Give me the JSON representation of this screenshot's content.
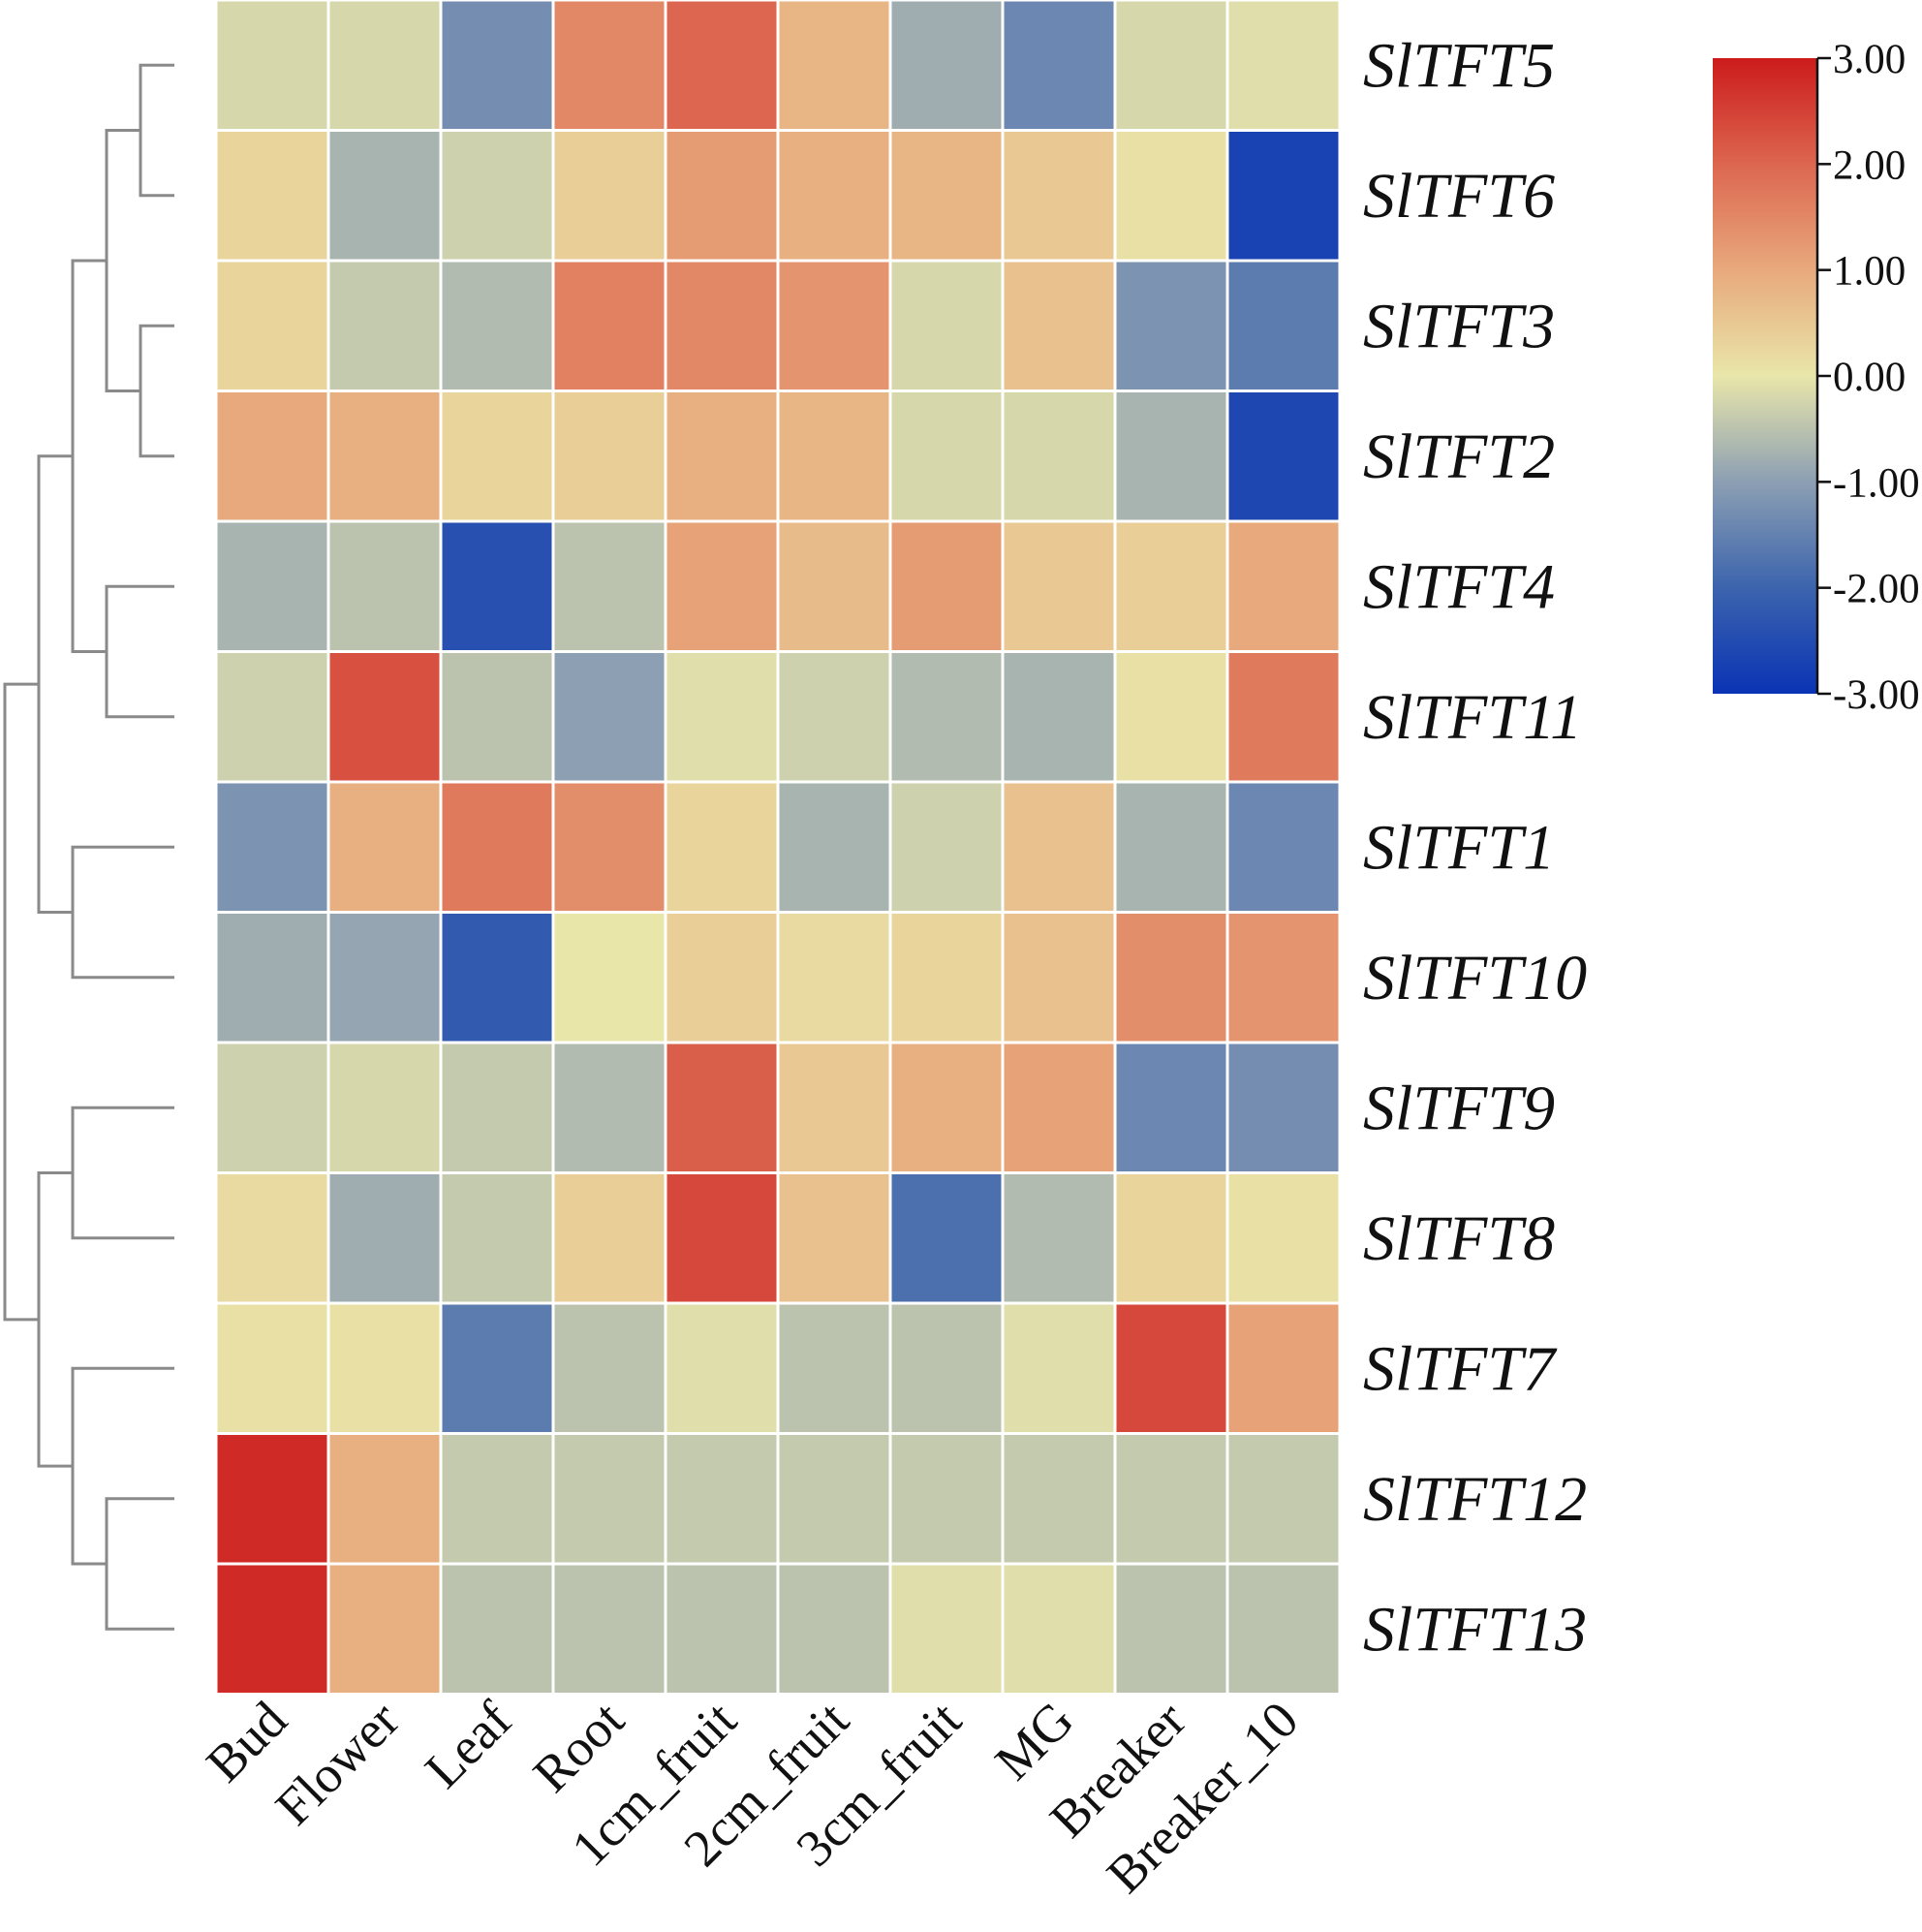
{
  "chart_data": {
    "type": "heatmap",
    "title": "",
    "xlabel": "",
    "ylabel": "",
    "columns": [
      "Bud",
      "Flower",
      "Leaf",
      "Root",
      "1cm_fruit",
      "2cm_fruit",
      "3cm_fruit",
      "MG",
      "Breaker",
      "Breaker_10"
    ],
    "rows": [
      "SlTFT5",
      "SlTFT6",
      "SlTFT3",
      "SlTFT2",
      "SlTFT4",
      "SlTFT11",
      "SlTFT1",
      "SlTFT10",
      "SlTFT9",
      "SlTFT8",
      "SlTFT7",
      "SlTFT12",
      "SlTFT13"
    ],
    "values": [
      [
        -0.2,
        -0.2,
        -1.3,
        1.5,
        2.0,
        0.8,
        -0.8,
        -1.4,
        -0.2,
        -0.1
      ],
      [
        0.3,
        -0.7,
        -0.3,
        0.4,
        1.2,
        0.9,
        0.8,
        0.5,
        0.1,
        -2.7
      ],
      [
        0.3,
        -0.4,
        -0.6,
        1.6,
        1.5,
        1.3,
        -0.2,
        0.6,
        -1.2,
        -1.6
      ],
      [
        1.0,
        0.9,
        0.3,
        0.4,
        0.9,
        0.8,
        -0.2,
        -0.2,
        -0.7,
        -2.6
      ],
      [
        -0.7,
        -0.5,
        -2.4,
        -0.5,
        1.1,
        0.7,
        1.2,
        0.5,
        0.4,
        1.0
      ],
      [
        -0.3,
        2.3,
        -0.5,
        -1.0,
        -0.1,
        -0.3,
        -0.6,
        -0.7,
        0.1,
        1.7
      ],
      [
        -1.2,
        0.9,
        1.7,
        1.4,
        0.3,
        -0.7,
        -0.3,
        0.6,
        -0.7,
        -1.4
      ],
      [
        -0.8,
        -0.9,
        -2.2,
        0.0,
        0.4,
        0.2,
        0.3,
        0.6,
        1.4,
        1.3
      ],
      [
        -0.3,
        -0.2,
        -0.4,
        -0.6,
        2.1,
        0.5,
        0.9,
        1.1,
        -1.4,
        -1.3
      ],
      [
        0.2,
        -0.8,
        -0.4,
        0.4,
        2.4,
        0.6,
        -1.8,
        -0.6,
        0.3,
        0.1
      ],
      [
        0.1,
        0.1,
        -1.6,
        -0.5,
        -0.1,
        -0.5,
        -0.5,
        -0.1,
        2.4,
        1.1
      ],
      [
        2.8,
        0.9,
        -0.4,
        -0.4,
        -0.4,
        -0.4,
        -0.4,
        -0.4,
        -0.4,
        -0.4
      ],
      [
        2.8,
        0.9,
        -0.5,
        -0.5,
        -0.5,
        -0.5,
        -0.1,
        -0.1,
        -0.5,
        -0.5
      ]
    ],
    "colorbar": {
      "range": [
        -3,
        3
      ],
      "ticks": [
        "3.00",
        "2.00",
        "1.00",
        "0.00",
        "-1.00",
        "-2.00",
        "-3.00"
      ],
      "colors": [
        "#0a33b5",
        "#3c64ad",
        "#8c9fb3",
        "#e9e6aa",
        "#e8a97c",
        "#dc6650",
        "#cc1b1b"
      ]
    },
    "cell_border_color": "#ffffff",
    "dendrogram_color": "#8a8a8a",
    "dendrogram": {
      "leaves": [
        "SlTFT5",
        "SlTFT6",
        "SlTFT3",
        "SlTFT2",
        "SlTFT4",
        "SlTFT11",
        "SlTFT1",
        "SlTFT10",
        "SlTFT9",
        "SlTFT8",
        "SlTFT7",
        "SlTFT12",
        "SlTFT13"
      ],
      "merges": [
        [
          0,
          1,
          1.0
        ],
        [
          2,
          3,
          1.0
        ],
        [
          13,
          14,
          2.0
        ],
        [
          4,
          5,
          2.0
        ],
        [
          15,
          16,
          3.0
        ],
        [
          6,
          7,
          3.0
        ],
        [
          8,
          9,
          3.0
        ],
        [
          11,
          12,
          2.0
        ],
        [
          10,
          20,
          3.0
        ],
        [
          17,
          18,
          4.0
        ],
        [
          19,
          21,
          4.0
        ],
        [
          22,
          23,
          5.0
        ]
      ]
    }
  }
}
